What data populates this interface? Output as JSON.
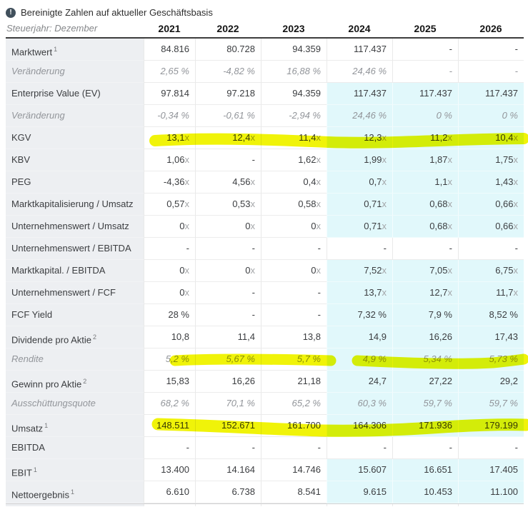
{
  "note": {
    "icon_glyph": "!",
    "text": "Bereinigte Zahlen auf aktueller Geschäftsbasis"
  },
  "table": {
    "corner_label": "Steuerjahr: Dezember",
    "years": [
      "2021",
      "2022",
      "2023",
      "2024",
      "2025",
      "2026"
    ],
    "estimate_bg": "#e1f8fb",
    "highlight_color": "#f0f309",
    "rows": [
      {
        "label": "Marktwert",
        "sup": "1",
        "style": "normal",
        "highlight": false,
        "values": [
          "84.816",
          "80.728",
          "94.359",
          "117.437",
          "-",
          "-"
        ],
        "estimates": [
          0,
          0,
          0,
          0,
          0,
          0
        ]
      },
      {
        "label": "Veränderung",
        "sup": "",
        "style": "sub",
        "highlight": false,
        "values": [
          "2,65 %",
          "-4,82 %",
          "16,88 %",
          "24,46 %",
          "-",
          "-"
        ],
        "estimates": [
          0,
          0,
          0,
          0,
          0,
          0
        ]
      },
      {
        "label": "Enterprise Value (EV)",
        "sup": "",
        "style": "normal",
        "highlight": false,
        "values": [
          "97.814",
          "97.218",
          "94.359",
          "117.437",
          "117.437",
          "117.437"
        ],
        "estimates": [
          0,
          0,
          0,
          1,
          1,
          1
        ]
      },
      {
        "label": "Veränderung",
        "sup": "",
        "style": "sub",
        "highlight": false,
        "values": [
          "-0,34 %",
          "-0,61 %",
          "-2,94 %",
          "24,46 %",
          "0 %",
          "0 %"
        ],
        "estimates": [
          0,
          0,
          0,
          1,
          1,
          1
        ]
      },
      {
        "label": "KGV",
        "sup": "",
        "style": "normal",
        "highlight": true,
        "values": [
          "13,1x",
          "12,4x",
          "11,4x",
          "12,3x",
          "11,2x",
          "10,4x"
        ],
        "estimates": [
          0,
          0,
          0,
          1,
          1,
          1
        ]
      },
      {
        "label": "KBV",
        "sup": "",
        "style": "normal",
        "highlight": false,
        "values": [
          "1,06x",
          "-",
          "1,62x",
          "1,99x",
          "1,87x",
          "1,75x"
        ],
        "estimates": [
          0,
          0,
          0,
          1,
          1,
          1
        ]
      },
      {
        "label": "PEG",
        "sup": "",
        "style": "normal",
        "highlight": false,
        "values": [
          "-4,36x",
          "4,56x",
          "0,4x",
          "0,7x",
          "1,1x",
          "1,43x"
        ],
        "estimates": [
          0,
          0,
          0,
          1,
          1,
          1
        ]
      },
      {
        "label": "Marktkapitalisierung / Umsatz",
        "sup": "",
        "style": "normal",
        "highlight": false,
        "values": [
          "0,57x",
          "0,53x",
          "0,58x",
          "0,71x",
          "0,68x",
          "0,66x"
        ],
        "estimates": [
          0,
          0,
          0,
          1,
          1,
          1
        ]
      },
      {
        "label": "Unternehmenswert / Umsatz",
        "sup": "",
        "style": "normal",
        "highlight": false,
        "values": [
          "0x",
          "0x",
          "0x",
          "0,71x",
          "0,68x",
          "0,66x"
        ],
        "estimates": [
          0,
          0,
          0,
          1,
          1,
          1
        ]
      },
      {
        "label": "Unternehmenswert / EBITDA",
        "sup": "",
        "style": "normal",
        "highlight": false,
        "values": [
          "-",
          "-",
          "-",
          "-",
          "-",
          "-"
        ],
        "estimates": [
          0,
          0,
          0,
          0,
          0,
          0
        ]
      },
      {
        "label": "Marktkapital. / EBITDA",
        "sup": "",
        "style": "normal",
        "highlight": false,
        "values": [
          "0x",
          "0x",
          "0x",
          "7,52x",
          "7,05x",
          "6,75x"
        ],
        "estimates": [
          0,
          0,
          0,
          1,
          1,
          1
        ]
      },
      {
        "label": "Unternehmenswert / FCF",
        "sup": "",
        "style": "normal",
        "highlight": false,
        "values": [
          "0x",
          "-",
          "-",
          "13,7x",
          "12,7x",
          "11,7x"
        ],
        "estimates": [
          0,
          0,
          0,
          1,
          1,
          1
        ]
      },
      {
        "label": "FCF Yield",
        "sup": "",
        "style": "normal",
        "highlight": false,
        "values": [
          "28 %",
          "-",
          "-",
          "7,32 %",
          "7,9 %",
          "8,52 %"
        ],
        "estimates": [
          0,
          0,
          0,
          1,
          1,
          1
        ]
      },
      {
        "label": "Dividende pro Aktie",
        "sup": "2",
        "style": "normal",
        "highlight": false,
        "values": [
          "10,8",
          "11,4",
          "13,8",
          "14,9",
          "16,26",
          "17,43"
        ],
        "estimates": [
          0,
          0,
          0,
          1,
          1,
          1
        ]
      },
      {
        "label": "Rendite",
        "sup": "",
        "style": "sub",
        "highlight": true,
        "values": [
          "5,2 %",
          "5,67 %",
          "5,7 %",
          "4,9 %",
          "5,34 %",
          "5,73 %"
        ],
        "estimates": [
          0,
          0,
          0,
          1,
          1,
          1
        ]
      },
      {
        "label": "Gewinn pro Aktie",
        "sup": "2",
        "style": "normal",
        "highlight": false,
        "values": [
          "15,83",
          "16,26",
          "21,18",
          "24,7",
          "27,22",
          "29,2"
        ],
        "estimates": [
          0,
          0,
          0,
          1,
          1,
          1
        ]
      },
      {
        "label": "Ausschüttungsquote",
        "sup": "",
        "style": "sub",
        "highlight": false,
        "values": [
          "68,2 %",
          "70,1 %",
          "65,2 %",
          "60,3 %",
          "59,7 %",
          "59,7 %"
        ],
        "estimates": [
          0,
          0,
          0,
          1,
          1,
          1
        ]
      },
      {
        "label": "Umsatz",
        "sup": "1",
        "style": "normal",
        "highlight": true,
        "values": [
          "148.511",
          "152.671",
          "161.700",
          "164.306",
          "171.936",
          "179.199"
        ],
        "estimates": [
          0,
          0,
          0,
          1,
          1,
          1
        ]
      },
      {
        "label": "EBITDA",
        "sup": "",
        "style": "normal",
        "highlight": false,
        "values": [
          "-",
          "-",
          "-",
          "-",
          "-",
          "-"
        ],
        "estimates": [
          0,
          0,
          0,
          0,
          0,
          0
        ]
      },
      {
        "label": "EBIT",
        "sup": "1",
        "style": "normal",
        "highlight": false,
        "values": [
          "13.400",
          "14.164",
          "14.746",
          "15.607",
          "16.651",
          "17.405"
        ],
        "estimates": [
          0,
          0,
          0,
          1,
          1,
          1
        ]
      },
      {
        "label": "Nettoergebnis",
        "sup": "1",
        "style": "normal",
        "highlight": false,
        "values": [
          "6.610",
          "6.738",
          "8.541",
          "9.615",
          "10.453",
          "11.100"
        ],
        "estimates": [
          0,
          0,
          0,
          1,
          1,
          1
        ]
      }
    ]
  }
}
